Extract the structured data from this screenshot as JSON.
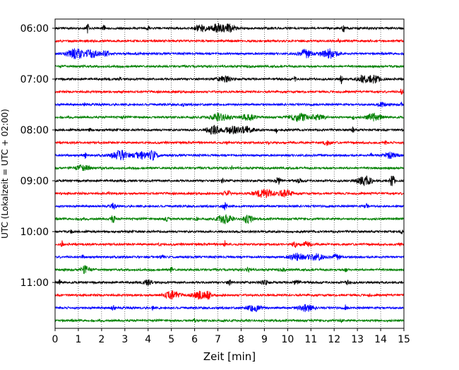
{
  "chart_data": {
    "type": "line",
    "title": "",
    "xlabel": "Zeit  [min]",
    "ylabel": "UTC (Lokalzeit = UTC + 02:00)",
    "xlim": [
      0,
      15
    ],
    "x_ticks": [
      "0",
      "1",
      "2",
      "3",
      "4",
      "5",
      "6",
      "7",
      "8",
      "9",
      "10",
      "11",
      "12",
      "13",
      "14",
      "15"
    ],
    "y_ticks": [
      "06:00",
      "07:00",
      "08:00",
      "09:00",
      "10:00",
      "11:00"
    ],
    "grid": "vertical dotted",
    "trace_color_cycle": [
      "#000000",
      "#ff0000",
      "#0000ff",
      "#008000"
    ],
    "series": [
      {
        "start": "06:00",
        "color": "#000000",
        "bursts": [
          [
            1.4,
            0.05,
            12
          ],
          [
            2.1,
            0.05,
            8
          ],
          [
            6.3,
            0.3,
            8
          ],
          [
            7.0,
            0.25,
            10
          ],
          [
            7.5,
            0.25,
            9
          ],
          [
            12.4,
            0.05,
            9
          ],
          [
            4.0,
            0.05,
            5
          ]
        ]
      },
      {
        "start": "06:15",
        "color": "#ff0000",
        "bursts": [
          [
            12.2,
            0.05,
            4
          ]
        ]
      },
      {
        "start": "06:30",
        "color": "#0000ff",
        "bursts": [
          [
            0.9,
            0.4,
            12
          ],
          [
            1.6,
            0.3,
            8
          ],
          [
            2.2,
            0.2,
            6
          ],
          [
            10.8,
            0.3,
            10
          ],
          [
            11.8,
            0.35,
            11
          ],
          [
            3.5,
            0.05,
            4
          ]
        ]
      },
      {
        "start": "06:45",
        "color": "#008000",
        "bursts": [
          [
            1.2,
            0.05,
            3
          ],
          [
            8.4,
            0.05,
            3
          ]
        ]
      },
      {
        "start": "07:00",
        "color": "#000000",
        "bursts": [
          [
            7.3,
            0.3,
            7
          ],
          [
            12.3,
            0.05,
            11
          ],
          [
            13.2,
            0.2,
            9
          ],
          [
            13.7,
            0.3,
            9
          ],
          [
            10.3,
            0.05,
            6
          ],
          [
            2.8,
            0.05,
            4
          ]
        ]
      },
      {
        "start": "07:15",
        "color": "#ff0000",
        "bursts": [
          [
            14.9,
            0.05,
            7
          ],
          [
            2.9,
            0.05,
            3
          ]
        ]
      },
      {
        "start": "07:30",
        "color": "#0000ff",
        "bursts": [
          [
            1.3,
            0.05,
            6
          ],
          [
            5.5,
            0.05,
            5
          ],
          [
            14.0,
            0.2,
            5
          ],
          [
            14.9,
            0.05,
            5
          ]
        ]
      },
      {
        "start": "07:45",
        "color": "#008000",
        "bursts": [
          [
            7.1,
            0.4,
            9
          ],
          [
            8.3,
            0.3,
            7
          ],
          [
            10.5,
            0.4,
            10
          ],
          [
            11.3,
            0.3,
            7
          ],
          [
            13.7,
            0.3,
            9
          ],
          [
            12.8,
            0.05,
            8
          ],
          [
            2.9,
            0.05,
            3
          ]
        ]
      },
      {
        "start": "08:00",
        "color": "#000000",
        "bursts": [
          [
            6.8,
            0.25,
            12
          ],
          [
            7.6,
            0.3,
            9
          ],
          [
            8.2,
            0.3,
            8
          ],
          [
            9.5,
            0.05,
            8
          ],
          [
            12.8,
            0.05,
            7
          ],
          [
            1.5,
            0.05,
            5
          ]
        ]
      },
      {
        "start": "08:15",
        "color": "#ff0000",
        "bursts": [
          [
            9.2,
            0.05,
            7
          ],
          [
            11.7,
            0.15,
            6
          ],
          [
            7.4,
            0.05,
            4
          ],
          [
            14.2,
            0.05,
            4
          ]
        ]
      },
      {
        "start": "08:30",
        "color": "#0000ff",
        "bursts": [
          [
            2.8,
            0.35,
            12
          ],
          [
            3.7,
            0.3,
            9
          ],
          [
            4.2,
            0.2,
            11
          ],
          [
            1.3,
            0.05,
            7
          ],
          [
            14.4,
            0.3,
            7
          ],
          [
            13.6,
            0.05,
            4
          ]
        ]
      },
      {
        "start": "08:45",
        "color": "#008000",
        "bursts": [
          [
            1.2,
            0.3,
            7
          ],
          [
            7.6,
            0.05,
            5
          ],
          [
            2.0,
            0.05,
            3
          ]
        ]
      },
      {
        "start": "09:00",
        "color": "#000000",
        "bursts": [
          [
            13.3,
            0.3,
            12
          ],
          [
            14.5,
            0.1,
            14
          ],
          [
            9.6,
            0.15,
            8
          ],
          [
            7.2,
            0.05,
            5
          ],
          [
            10.5,
            0.1,
            5
          ]
        ]
      },
      {
        "start": "09:15",
        "color": "#ff0000",
        "bursts": [
          [
            9.0,
            0.4,
            10
          ],
          [
            9.9,
            0.3,
            9
          ],
          [
            7.4,
            0.15,
            6
          ],
          [
            2.3,
            0.05,
            3
          ]
        ]
      },
      {
        "start": "09:30",
        "color": "#0000ff",
        "bursts": [
          [
            2.5,
            0.1,
            6
          ],
          [
            7.3,
            0.1,
            8
          ],
          [
            13.4,
            0.1,
            5
          ]
        ]
      },
      {
        "start": "09:45",
        "color": "#008000",
        "bursts": [
          [
            7.3,
            0.3,
            11
          ],
          [
            8.3,
            0.2,
            11
          ],
          [
            2.5,
            0.1,
            9
          ],
          [
            4.8,
            0.1,
            5
          ],
          [
            6.1,
            0.05,
            5
          ],
          [
            1.1,
            0.05,
            4
          ]
        ]
      },
      {
        "start": "10:00",
        "color": "#000000",
        "bursts": [
          [
            0.7,
            0.05,
            3
          ],
          [
            14.9,
            0.05,
            4
          ]
        ]
      },
      {
        "start": "10:15",
        "color": "#ff0000",
        "bursts": [
          [
            0.3,
            0.05,
            8
          ],
          [
            7.3,
            0.05,
            12
          ],
          [
            10.3,
            0.1,
            8
          ],
          [
            10.8,
            0.2,
            6
          ],
          [
            14.8,
            0.05,
            5
          ],
          [
            4.5,
            0.05,
            3
          ]
        ]
      },
      {
        "start": "10:30",
        "color": "#0000ff",
        "bursts": [
          [
            10.4,
            0.3,
            9
          ],
          [
            11.2,
            0.35,
            8
          ],
          [
            12.1,
            0.2,
            6
          ],
          [
            4.6,
            0.1,
            5
          ],
          [
            1.2,
            0.05,
            4
          ]
        ]
      },
      {
        "start": "10:45",
        "color": "#008000",
        "bursts": [
          [
            1.3,
            0.2,
            9
          ],
          [
            5.0,
            0.05,
            8
          ],
          [
            8.3,
            0.1,
            6
          ],
          [
            12.5,
            0.05,
            6
          ],
          [
            9.8,
            0.1,
            5
          ]
        ]
      },
      {
        "start": "11:00",
        "color": "#000000",
        "bursts": [
          [
            0.2,
            0.05,
            7
          ],
          [
            4.0,
            0.2,
            6
          ],
          [
            9.0,
            0.15,
            6
          ],
          [
            10.4,
            0.15,
            6
          ],
          [
            12.6,
            0.1,
            5
          ],
          [
            7.5,
            0.1,
            5
          ]
        ]
      },
      {
        "start": "11:15",
        "color": "#ff0000",
        "bursts": [
          [
            5.0,
            0.3,
            11
          ],
          [
            6.2,
            0.3,
            10
          ],
          [
            6.6,
            0.1,
            8
          ],
          [
            13.5,
            0.05,
            3
          ]
        ]
      },
      {
        "start": "11:30",
        "color": "#0000ff",
        "bursts": [
          [
            8.6,
            0.3,
            9
          ],
          [
            10.8,
            0.3,
            9
          ],
          [
            12.5,
            0.05,
            7
          ],
          [
            2.5,
            0.1,
            5
          ],
          [
            4.2,
            0.05,
            4
          ]
        ]
      },
      {
        "start": "11:45",
        "color": "#008000",
        "bursts": [
          [
            12.3,
            0.05,
            8
          ],
          [
            6.0,
            0.05,
            4
          ],
          [
            13.8,
            0.05,
            3
          ]
        ]
      }
    ]
  }
}
